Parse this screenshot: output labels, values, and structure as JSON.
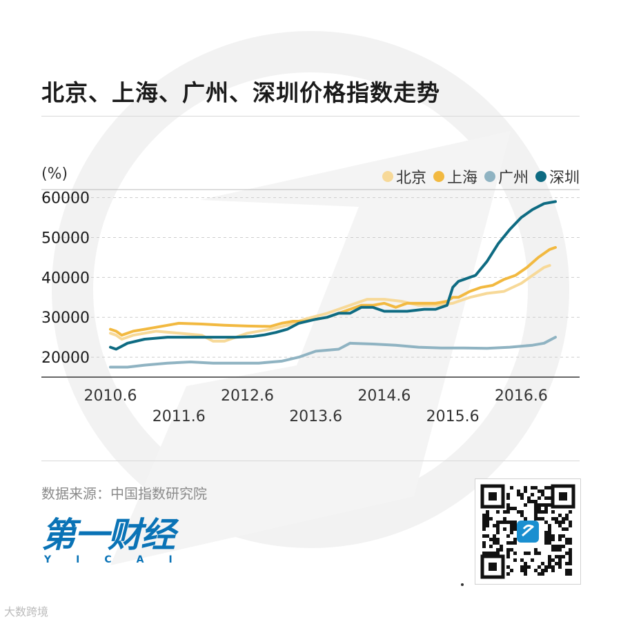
{
  "title": "北京、上海、广州、深圳价格指数走势",
  "source": "数据来源：中国指数研究院",
  "logo": {
    "cn": "第一财经",
    "en": "YICAI"
  },
  "watermark_text": "大数跨境",
  "colors": {
    "beijing": "#f7d998",
    "shanghai": "#f2b940",
    "guangzhou": "#8fb3c2",
    "shenzhen": "#0e6b82"
  },
  "chart_data": {
    "type": "line",
    "unit_label": "(%)",
    "ylim": [
      15000,
      62000
    ],
    "y_ticks": [
      20000,
      30000,
      40000,
      50000,
      60000
    ],
    "x_ticks_row1": [
      "2010.6",
      "2012.6",
      "2014.6",
      "2016.6"
    ],
    "x_ticks_row2": [
      "2011.6",
      "2013.6",
      "2015.6"
    ],
    "x_tick_index": {
      "2010.6": 0,
      "2011.6": 12,
      "2012.6": 24,
      "2013.6": 36,
      "2014.6": 48,
      "2015.6": 60,
      "2016.6": 72
    },
    "grid": "horizontal dashed",
    "legend_position": "top-right",
    "series": [
      {
        "name": "北京",
        "color": "#f7d998",
        "points": [
          [
            0,
            26000
          ],
          [
            1,
            25500
          ],
          [
            2,
            24500
          ],
          [
            4,
            25500
          ],
          [
            6,
            26000
          ],
          [
            8,
            26500
          ],
          [
            12,
            26000
          ],
          [
            16,
            25500
          ],
          [
            18,
            24000
          ],
          [
            20,
            24000
          ],
          [
            24,
            26000
          ],
          [
            28,
            27000
          ],
          [
            31,
            28000
          ],
          [
            34,
            29500
          ],
          [
            38,
            31000
          ],
          [
            42,
            33000
          ],
          [
            45,
            34500
          ],
          [
            48,
            34500
          ],
          [
            51,
            34000
          ],
          [
            54,
            33000
          ],
          [
            57,
            33000
          ],
          [
            60,
            33500
          ],
          [
            63,
            35000
          ],
          [
            66,
            36000
          ],
          [
            69,
            36500
          ],
          [
            72,
            38500
          ],
          [
            74,
            40500
          ],
          [
            76,
            42500
          ],
          [
            77,
            43000
          ]
        ]
      },
      {
        "name": "上海",
        "color": "#f2b940",
        "points": [
          [
            0,
            27000
          ],
          [
            1,
            26500
          ],
          [
            2,
            25500
          ],
          [
            4,
            26500
          ],
          [
            6,
            27000
          ],
          [
            8,
            27500
          ],
          [
            10,
            28000
          ],
          [
            12,
            28500
          ],
          [
            16,
            28300
          ],
          [
            20,
            28000
          ],
          [
            24,
            27800
          ],
          [
            28,
            27700
          ],
          [
            30,
            28500
          ],
          [
            32,
            29000
          ],
          [
            34,
            29000
          ],
          [
            38,
            30000
          ],
          [
            42,
            32000
          ],
          [
            44,
            33000
          ],
          [
            46,
            33000
          ],
          [
            48,
            33500
          ],
          [
            50,
            32500
          ],
          [
            52,
            33500
          ],
          [
            54,
            33500
          ],
          [
            57,
            33500
          ],
          [
            59,
            34000
          ],
          [
            60,
            35000
          ],
          [
            61,
            35000
          ],
          [
            63,
            36500
          ],
          [
            65,
            37500
          ],
          [
            67,
            38000
          ],
          [
            69,
            39500
          ],
          [
            71,
            40500
          ],
          [
            73,
            42500
          ],
          [
            75,
            45000
          ],
          [
            77,
            47000
          ],
          [
            78,
            47500
          ]
        ]
      },
      {
        "name": "广州",
        "color": "#8fb3c2",
        "points": [
          [
            0,
            17500
          ],
          [
            3,
            17500
          ],
          [
            6,
            18000
          ],
          [
            10,
            18500
          ],
          [
            14,
            18800
          ],
          [
            18,
            18500
          ],
          [
            22,
            18500
          ],
          [
            26,
            18500
          ],
          [
            30,
            19000
          ],
          [
            33,
            20000
          ],
          [
            36,
            21500
          ],
          [
            40,
            22000
          ],
          [
            42,
            23500
          ],
          [
            46,
            23300
          ],
          [
            50,
            23000
          ],
          [
            54,
            22500
          ],
          [
            58,
            22300
          ],
          [
            62,
            22300
          ],
          [
            66,
            22200
          ],
          [
            70,
            22500
          ],
          [
            74,
            23000
          ],
          [
            76,
            23500
          ],
          [
            78,
            25000
          ]
        ]
      },
      {
        "name": "深圳",
        "color": "#0e6b82",
        "points": [
          [
            0,
            22500
          ],
          [
            1,
            22000
          ],
          [
            3,
            23500
          ],
          [
            6,
            24500
          ],
          [
            10,
            25000
          ],
          [
            14,
            25000
          ],
          [
            18,
            25000
          ],
          [
            22,
            25000
          ],
          [
            25,
            25200
          ],
          [
            27,
            25600
          ],
          [
            29,
            26200
          ],
          [
            31,
            27000
          ],
          [
            33,
            28500
          ],
          [
            36,
            29500
          ],
          [
            38,
            30000
          ],
          [
            40,
            31000
          ],
          [
            42,
            31000
          ],
          [
            44,
            32500
          ],
          [
            46,
            32500
          ],
          [
            48,
            31500
          ],
          [
            52,
            31500
          ],
          [
            55,
            32000
          ],
          [
            57,
            32000
          ],
          [
            59,
            33000
          ],
          [
            60,
            37500
          ],
          [
            61,
            39000
          ],
          [
            62,
            39500
          ],
          [
            64,
            40500
          ],
          [
            66,
            44000
          ],
          [
            68,
            48500
          ],
          [
            70,
            52000
          ],
          [
            72,
            55000
          ],
          [
            74,
            57000
          ],
          [
            76,
            58500
          ],
          [
            78,
            59000
          ]
        ]
      }
    ]
  }
}
